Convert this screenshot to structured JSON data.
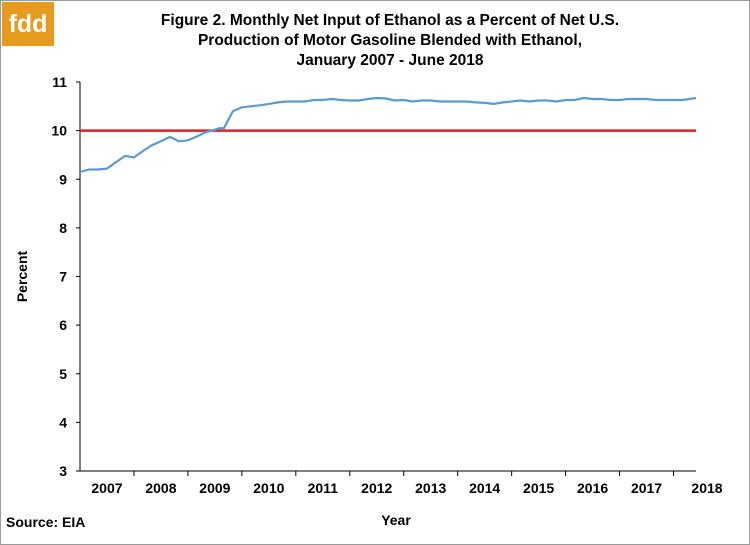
{
  "logo": {
    "text": "fdd"
  },
  "title_lines": [
    "Figure 2. Monthly Net Input of Ethanol as a Percent of Net U.S.",
    "Production of Motor Gasoline Blended with Ethanol,",
    "January 2007 - June 2018"
  ],
  "source": "Source: EIA",
  "chart_data": {
    "type": "line",
    "title": "Figure 2. Monthly Net Input of Ethanol as a Percent of Net U.S. Production of Motor Gasoline Blended with Ethanol, January 2007 - June 2018",
    "xlabel": "Year",
    "ylabel": "Percent",
    "ylim": [
      3,
      11
    ],
    "yticks": [
      3,
      4,
      5,
      6,
      7,
      8,
      9,
      10,
      11
    ],
    "xticks": [
      "2007",
      "2008",
      "2009",
      "2010",
      "2011",
      "2012",
      "2013",
      "2014",
      "2015",
      "2016",
      "2017",
      "2018"
    ],
    "x_start": "2007-01",
    "x_end": "2018-06",
    "grid": false,
    "reference_line": {
      "value": 10,
      "color": "#e02020"
    },
    "series": [
      {
        "color": "#5b9bd5",
        "x": [
          "2007-01",
          "2007-03",
          "2007-05",
          "2007-07",
          "2007-09",
          "2007-11",
          "2008-01",
          "2008-03",
          "2008-05",
          "2008-07",
          "2008-09",
          "2008-11",
          "2009-01",
          "2009-03",
          "2009-05",
          "2009-07",
          "2009-08",
          "2009-09",
          "2009-11",
          "2010-01",
          "2010-03",
          "2010-05",
          "2010-07",
          "2010-09",
          "2010-11",
          "2011-01",
          "2011-03",
          "2011-05",
          "2011-07",
          "2011-09",
          "2011-11",
          "2012-01",
          "2012-03",
          "2012-05",
          "2012-07",
          "2012-09",
          "2012-11",
          "2013-01",
          "2013-03",
          "2013-05",
          "2013-07",
          "2013-09",
          "2013-11",
          "2014-01",
          "2014-03",
          "2014-05",
          "2014-07",
          "2014-09",
          "2014-11",
          "2015-01",
          "2015-03",
          "2015-05",
          "2015-07",
          "2015-09",
          "2015-11",
          "2016-01",
          "2016-03",
          "2016-05",
          "2016-07",
          "2016-09",
          "2016-11",
          "2017-01",
          "2017-03",
          "2017-05",
          "2017-07",
          "2017-09",
          "2017-11",
          "2018-01",
          "2018-03",
          "2018-06"
        ],
        "values": [
          9.15,
          9.2,
          9.2,
          9.22,
          9.35,
          9.48,
          9.45,
          9.58,
          9.7,
          9.78,
          9.87,
          9.78,
          9.8,
          9.88,
          9.97,
          10.02,
          10.05,
          10.05,
          10.4,
          10.48,
          10.5,
          10.52,
          10.55,
          10.58,
          10.6,
          10.6,
          10.6,
          10.63,
          10.63,
          10.65,
          10.63,
          10.62,
          10.62,
          10.65,
          10.67,
          10.66,
          10.62,
          10.63,
          10.6,
          10.62,
          10.62,
          10.6,
          10.6,
          10.6,
          10.6,
          10.58,
          10.57,
          10.55,
          10.58,
          10.6,
          10.62,
          10.6,
          10.62,
          10.62,
          10.6,
          10.63,
          10.63,
          10.67,
          10.65,
          10.65,
          10.63,
          10.63,
          10.65,
          10.65,
          10.65,
          10.63,
          10.63,
          10.63,
          10.63,
          10.67
        ]
      }
    ]
  }
}
